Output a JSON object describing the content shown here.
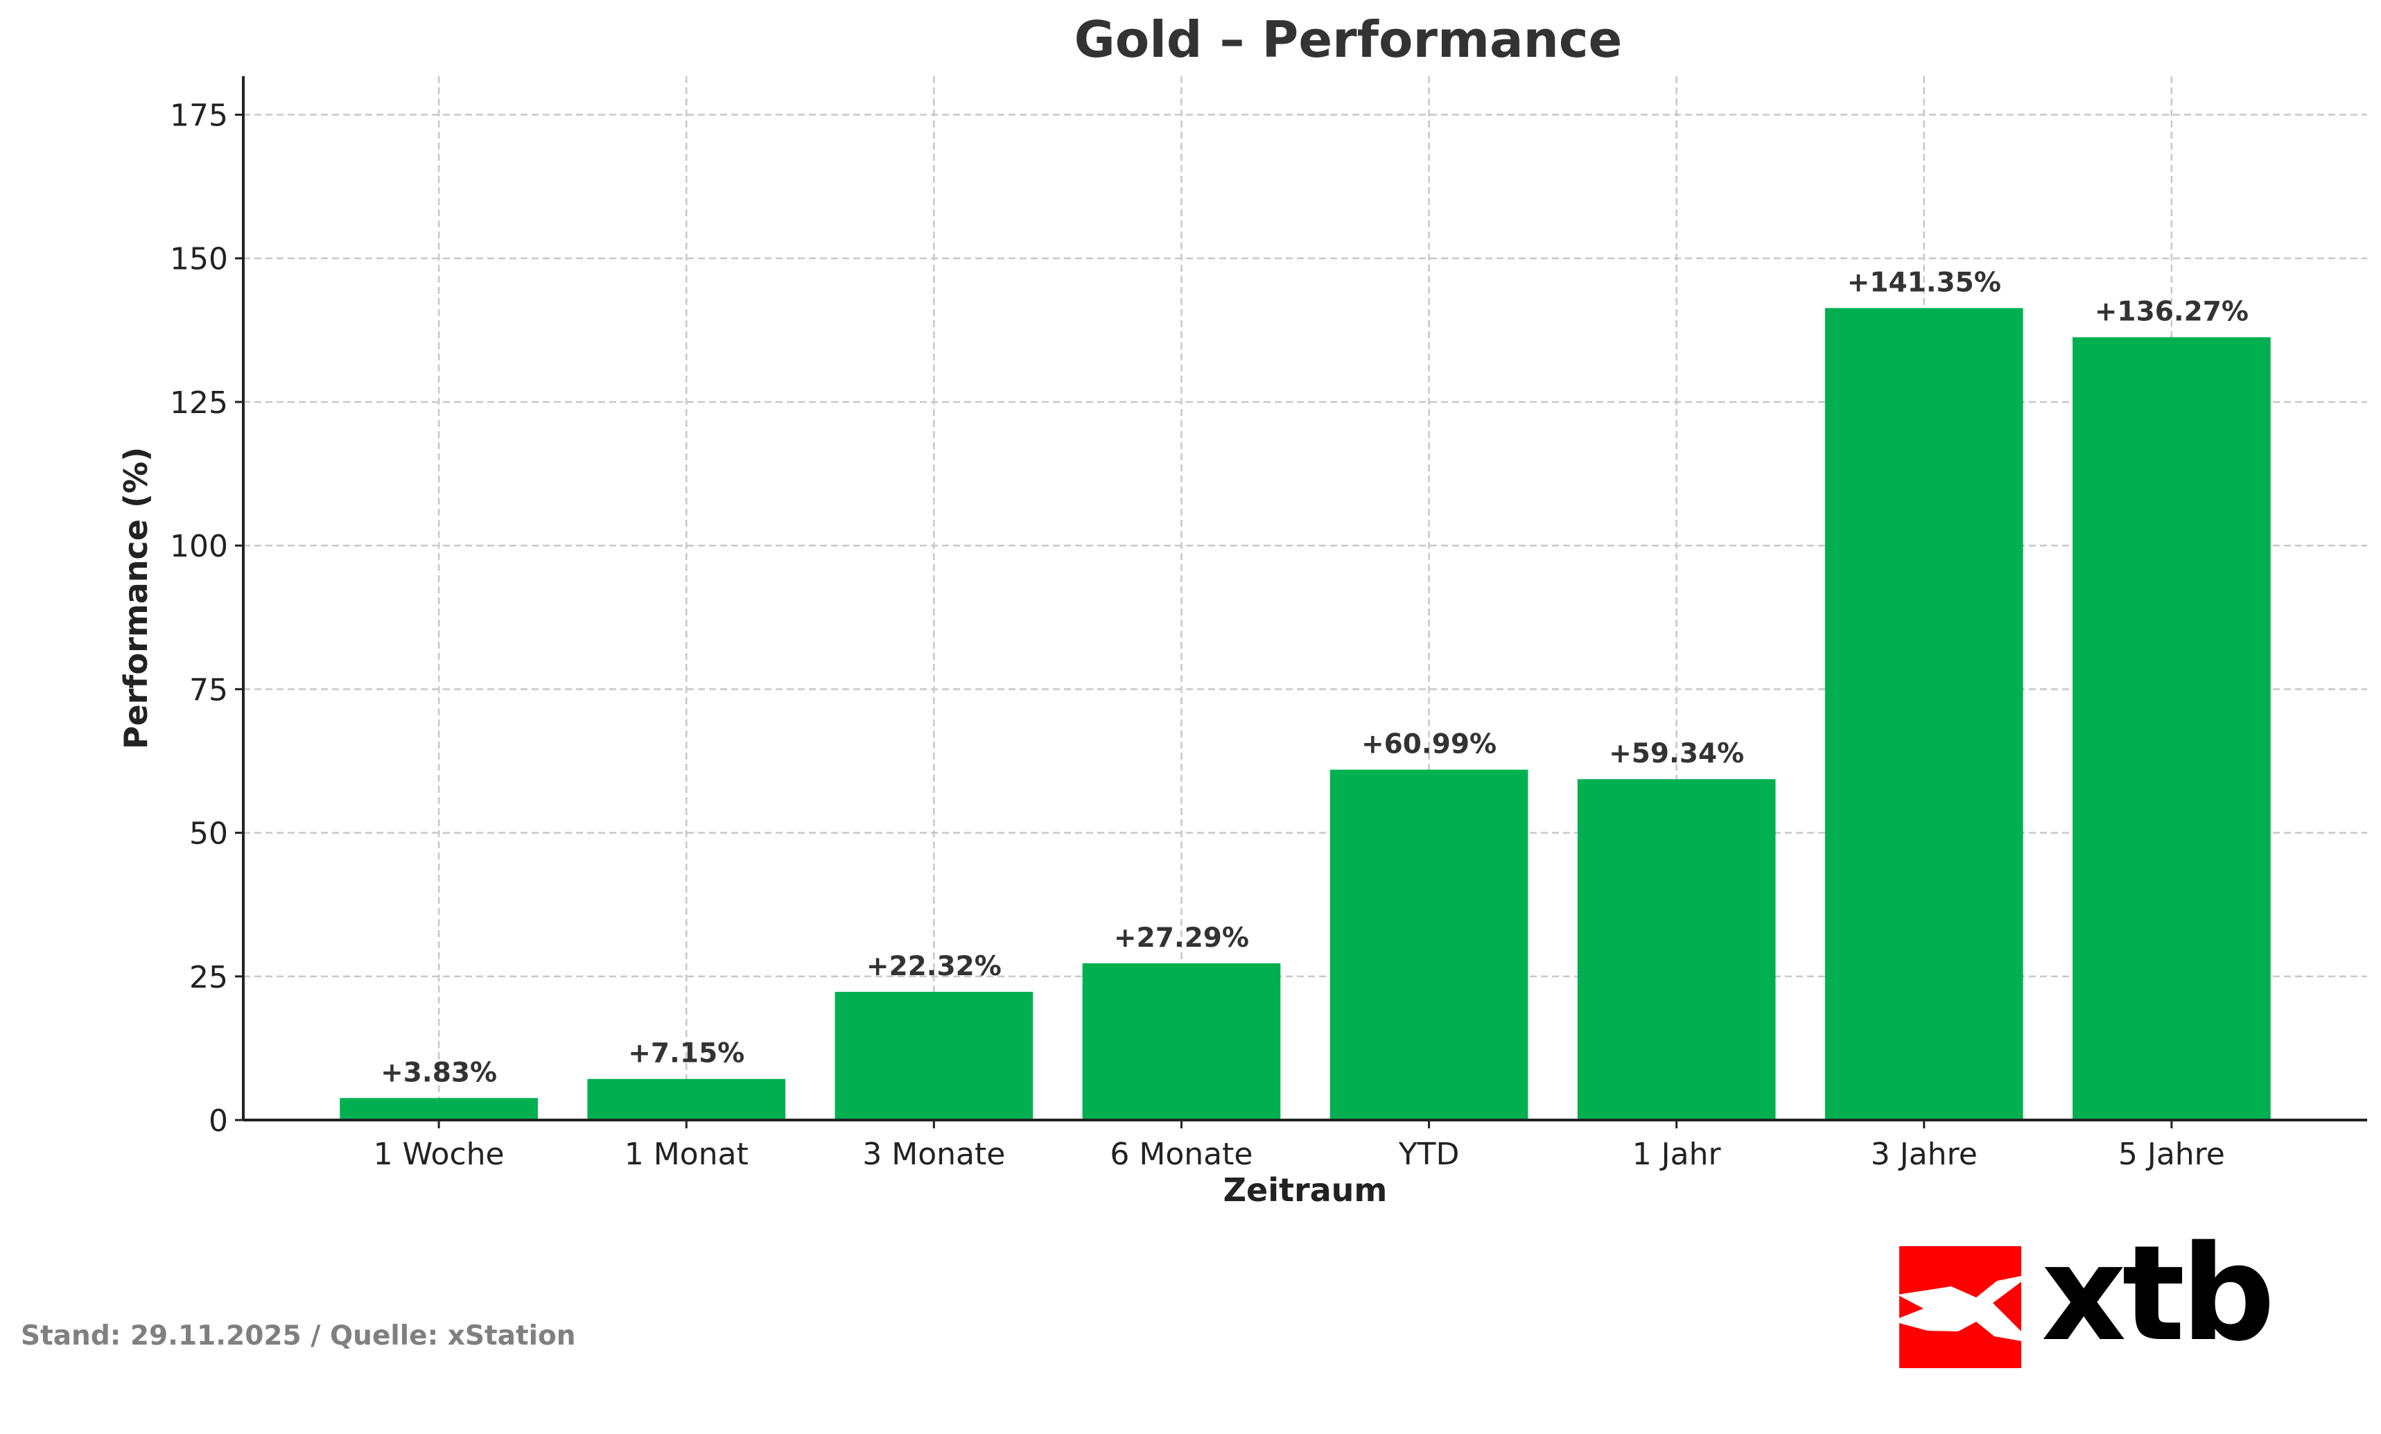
{
  "chart_data": {
    "type": "bar",
    "title": "Gold – Performance",
    "xlabel": "Zeitraum",
    "ylabel": "Performance (%)",
    "categories": [
      "1 Woche",
      "1 Monat",
      "3 Monate",
      "6 Monate",
      "YTD",
      "1 Jahr",
      "3 Jahre",
      "5 Jahre"
    ],
    "values": [
      3.83,
      7.15,
      22.32,
      27.29,
      60.99,
      59.34,
      141.35,
      136.27
    ],
    "data_labels": [
      "+3.83%",
      "+7.15%",
      "+22.32%",
      "+27.29%",
      "+60.99%",
      "+59.34%",
      "+141.35%",
      "+136.27%"
    ],
    "ylim": [
      0,
      181.7
    ],
    "yticks": [
      0,
      25,
      50,
      75,
      100,
      125,
      150,
      175
    ],
    "grid": true,
    "bar_color": "#00B050"
  },
  "footer": {
    "source": "Stand: 29.11.2025 / Quelle: xStation"
  },
  "logo": {
    "text": "xtb",
    "color": "#FF0000"
  }
}
